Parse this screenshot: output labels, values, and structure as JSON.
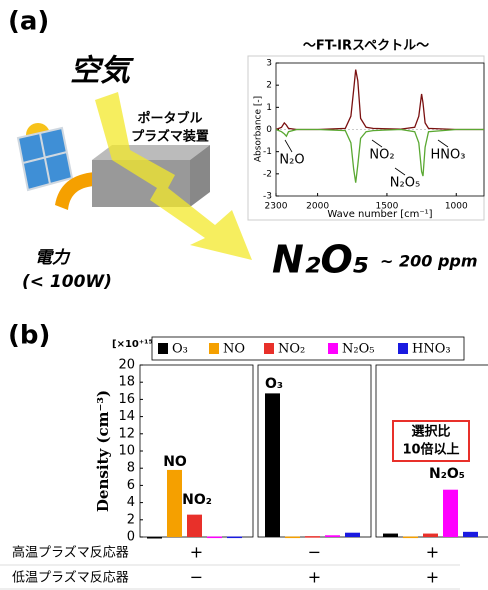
{
  "panel_a": {
    "label": "(a)",
    "air": "空気",
    "device": [
      "ポータブル",
      "プラズマ装置"
    ],
    "power": "電力",
    "power_limit": "(< 100W)",
    "product": "N₂O₅",
    "concentration": "~ 200 ppm"
  },
  "panel_b_label": "(b)",
  "chart_data": [
    {
      "type": "line",
      "title": "～FT-IRスペクトル～",
      "xlabel": "Wave number [cm⁻¹]",
      "ylabel": "Absorbance [-]",
      "x": [
        2300,
        2260,
        2240,
        2225,
        2210,
        2150,
        2000,
        1800,
        1760,
        1740,
        1725,
        1710,
        1690,
        1650,
        1600,
        1400,
        1300,
        1270,
        1250,
        1240,
        1225,
        1200,
        1000,
        800
      ],
      "series": [
        {
          "color": "#7a1010",
          "values": [
            0,
            0.1,
            0.3,
            0.2,
            0.05,
            0,
            0,
            0.05,
            0.6,
            1.8,
            2.7,
            2.2,
            0.5,
            0.1,
            0.05,
            0.02,
            0.1,
            0.6,
            1.6,
            1.2,
            0.3,
            0.05,
            0,
            0
          ]
        },
        {
          "color": "#5aa832",
          "values": [
            0,
            -0.1,
            -0.2,
            -0.3,
            -0.1,
            0,
            0,
            -0.05,
            -0.6,
            -1.8,
            -2.4,
            -1.6,
            -0.4,
            -0.1,
            -0.05,
            0,
            -0.1,
            -0.6,
            -1.9,
            -2.1,
            -0.8,
            -0.1,
            0,
            0
          ]
        }
      ],
      "xlim": [
        2300,
        800
      ],
      "ylim": [
        -3,
        3
      ],
      "xticks": [
        2300,
        2000,
        1500,
        1000
      ],
      "yticks": [
        -3,
        -2,
        -1,
        0,
        1,
        2,
        3
      ],
      "annotations": [
        {
          "text": "N₂O"
        },
        {
          "text": "NO₂"
        },
        {
          "text": "N₂O₅"
        },
        {
          "text": "HNO₃"
        }
      ]
    },
    {
      "type": "bar",
      "ylabel": "Density (cm⁻³)",
      "scale_label": "[×10⁺¹⁵]",
      "categories": [
        null,
        null,
        null
      ],
      "series": [
        {
          "name": "O₃",
          "color": "#000000",
          "values": [
            0,
            16.7,
            0.4
          ]
        },
        {
          "name": "NO",
          "color": "#f5a000",
          "values": [
            7.8,
            0.05,
            0.05
          ]
        },
        {
          "name": "NO₂",
          "color": "#e8302a",
          "values": [
            2.6,
            0.1,
            0.4
          ]
        },
        {
          "name": "N₂O₅",
          "color": "#ff00ff",
          "values": [
            0.05,
            0.2,
            5.5
          ]
        },
        {
          "name": "HNO₃",
          "color": "#1a1ae0",
          "values": [
            0.05,
            0.5,
            0.6
          ]
        }
      ],
      "ylim": [
        0,
        20
      ],
      "yticks": [
        0,
        2,
        4,
        6,
        8,
        10,
        12,
        14,
        16,
        18,
        20
      ],
      "annotations": [
        {
          "text": "NO"
        },
        {
          "text": "NO₂"
        },
        {
          "text": "O₃"
        },
        {
          "text": "N₂O₅"
        }
      ],
      "highlight_box": [
        "選択比",
        "10倍以上"
      ],
      "conditions": [
        {
          "label": "高温プラズマ反応器",
          "values": [
            "+",
            "−",
            "+"
          ]
        },
        {
          "label": "低温プラズマ反応器",
          "values": [
            "−",
            "+",
            "+"
          ]
        }
      ]
    }
  ]
}
